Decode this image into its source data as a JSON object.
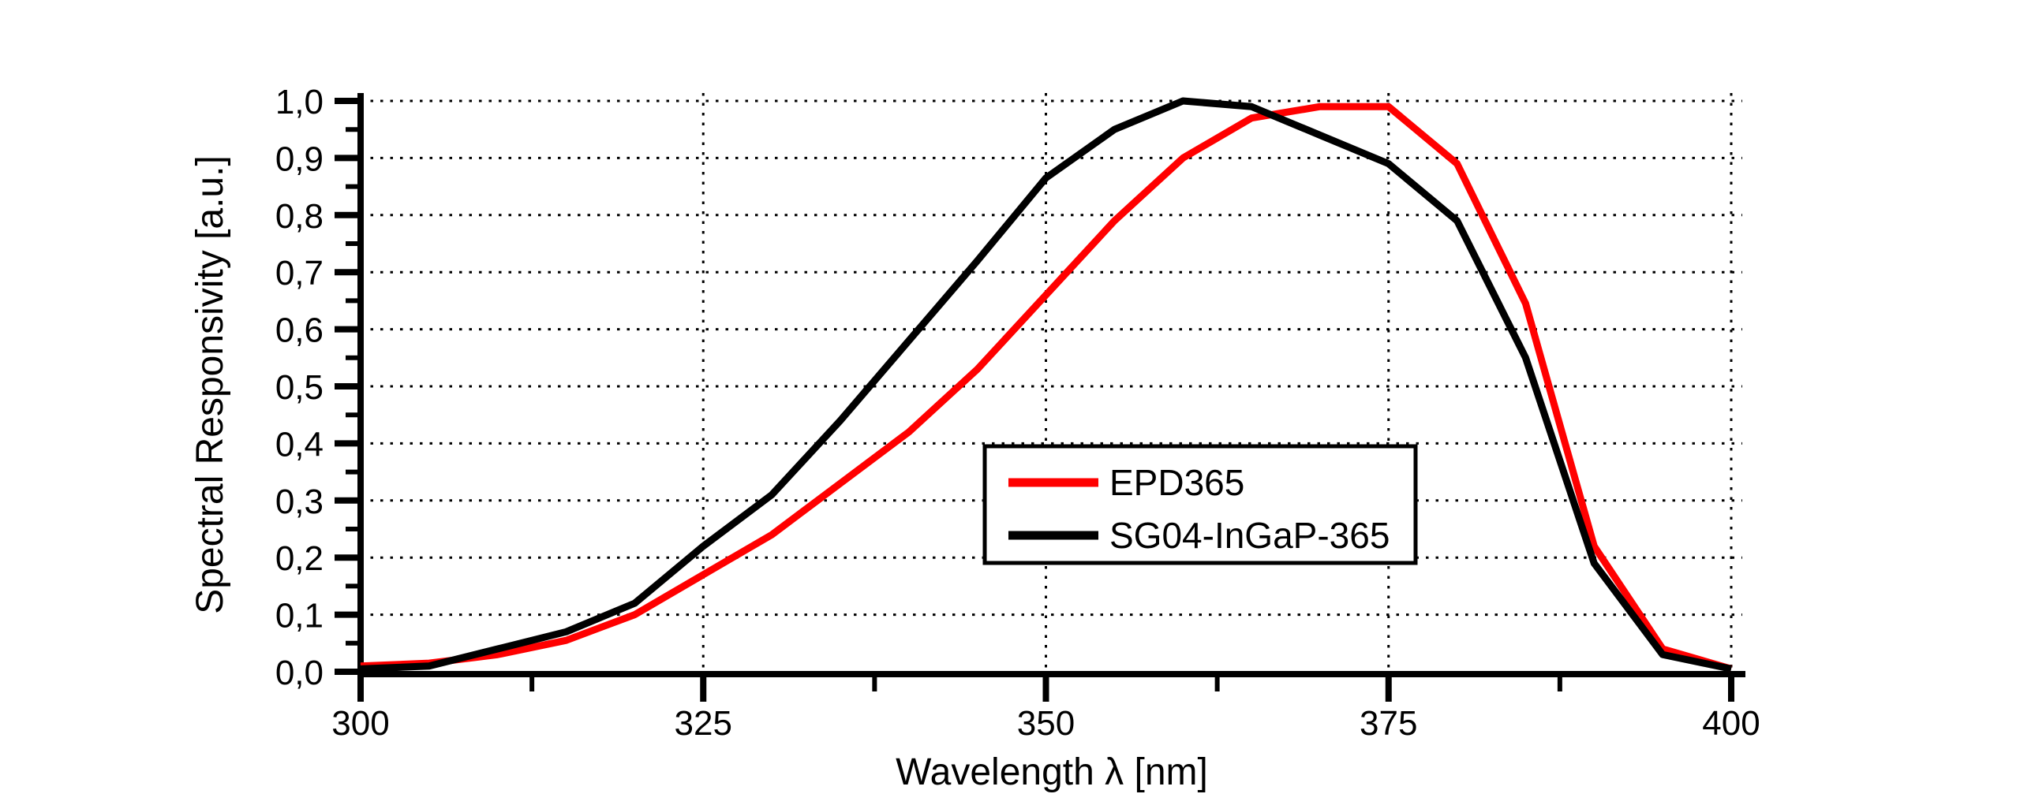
{
  "chart_data": {
    "type": "line",
    "title": "",
    "xlabel": "Wavelength λ [nm]",
    "ylabel": "Spectral Responsivity [a.u.]",
    "xlim": [
      300,
      400
    ],
    "ylim": [
      0.0,
      1.0
    ],
    "grid": "dotted",
    "legend_position": "inside center-right",
    "x_major_ticks": [
      300,
      325,
      350,
      375,
      400
    ],
    "x_tick_labels": [
      "300",
      "325",
      "350",
      "375",
      "400"
    ],
    "x_minor_ticks": [
      312.5,
      337.5,
      362.5,
      387.5
    ],
    "y_major_ticks": [
      0.0,
      0.1,
      0.2,
      0.3,
      0.4,
      0.5,
      0.6,
      0.7,
      0.8,
      0.9,
      1.0
    ],
    "y_tick_labels": [
      "0,0",
      "0,1",
      "0,2",
      "0,3",
      "0,4",
      "0,5",
      "0,6",
      "0,7",
      "0,8",
      "0,9",
      "1,0"
    ],
    "y_minor_ticks": [
      0.05,
      0.15,
      0.25,
      0.35,
      0.45,
      0.55,
      0.65,
      0.75,
      0.85,
      0.95
    ],
    "vertical_gridlines_at": [
      325,
      350,
      375,
      400
    ],
    "horizontal_gridlines_at": [
      0.1,
      0.2,
      0.3,
      0.4,
      0.5,
      0.6,
      0.7,
      0.8,
      0.9,
      1.0
    ],
    "x": [
      300,
      305,
      310,
      315,
      320,
      325,
      330,
      335,
      340,
      345,
      350,
      355,
      360,
      365,
      370,
      375,
      380,
      385,
      390,
      395,
      400
    ],
    "series": [
      {
        "name": "EPD365",
        "color": "#ff0000",
        "values": [
          0.01,
          0.015,
          0.03,
          0.055,
          0.1,
          0.17,
          0.24,
          0.33,
          0.42,
          0.53,
          0.66,
          0.79,
          0.9,
          0.97,
          0.99,
          0.99,
          0.89,
          0.645,
          0.22,
          0.04,
          0.005
        ]
      },
      {
        "name": "SG04-InGaP-365",
        "color": "#000000",
        "values": [
          0.005,
          0.01,
          0.04,
          0.07,
          0.12,
          0.22,
          0.31,
          0.44,
          0.58,
          0.72,
          0.865,
          0.95,
          1.0,
          0.99,
          0.94,
          0.89,
          0.79,
          0.55,
          0.19,
          0.03,
          0.005
        ]
      }
    ]
  },
  "colors": {
    "background": "#ffffff",
    "axis": "#000000",
    "gridline": "#000000"
  }
}
